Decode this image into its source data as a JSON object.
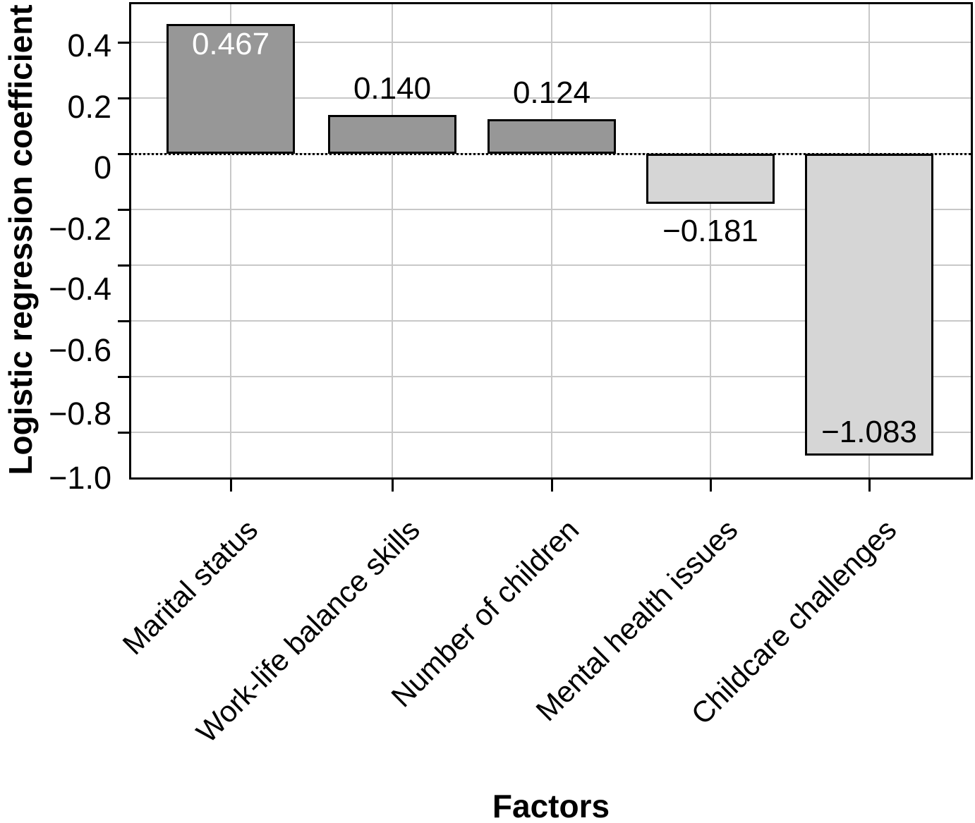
{
  "chart_data": {
    "type": "bar",
    "title": "",
    "xlabel": "Factors",
    "ylabel": "Logistic regression coefficient",
    "categories": [
      "Marital status",
      "Work-life balance skills",
      "Number of children",
      "Mental health issues",
      "Childcare challenges"
    ],
    "values": [
      0.467,
      0.14,
      0.124,
      -0.181,
      -1.083
    ],
    "bars": [
      {
        "category": "Marital status",
        "value": 0.467,
        "label": "0.467",
        "color": "#979797",
        "label_position": "inside-top",
        "label_color": "#ffffff"
      },
      {
        "category": "Work-life balance skills",
        "value": 0.14,
        "label": "0.140",
        "color": "#979797",
        "label_position": "above",
        "label_color": "#000000"
      },
      {
        "category": "Number of children",
        "value": 0.124,
        "label": "0.124",
        "color": "#979797",
        "label_position": "above",
        "label_color": "#000000"
      },
      {
        "category": "Mental health issues",
        "value": -0.181,
        "label": "−0.181",
        "color": "#d6d6d6",
        "label_position": "below",
        "label_color": "#000000"
      },
      {
        "category": "Childcare challenges",
        "value": -1.083,
        "label": "−1.083",
        "color": "#d6d6d6",
        "label_position": "inside-bottom",
        "label_color": "#000000"
      }
    ],
    "y_tick_values": [
      0.4,
      0.2,
      0,
      -0.2,
      -0.4,
      -0.6,
      -0.8,
      -1.0
    ],
    "y_tick_labels": [
      "0.4",
      "0.2",
      "0",
      "−0.2",
      "−0.4",
      "−0.6",
      "−0.8",
      "−1.0"
    ],
    "ylim": [
      -1.17,
      0.545
    ],
    "grid": true,
    "legend": null,
    "colors": {
      "positive_bar": "#979797",
      "negative_bar": "#d6d6d6",
      "gridline": "#c8c8c8",
      "axis": "#000000",
      "zero_line": "#000000",
      "background": "#ffffff"
    },
    "zero_line_style": "dotted"
  }
}
